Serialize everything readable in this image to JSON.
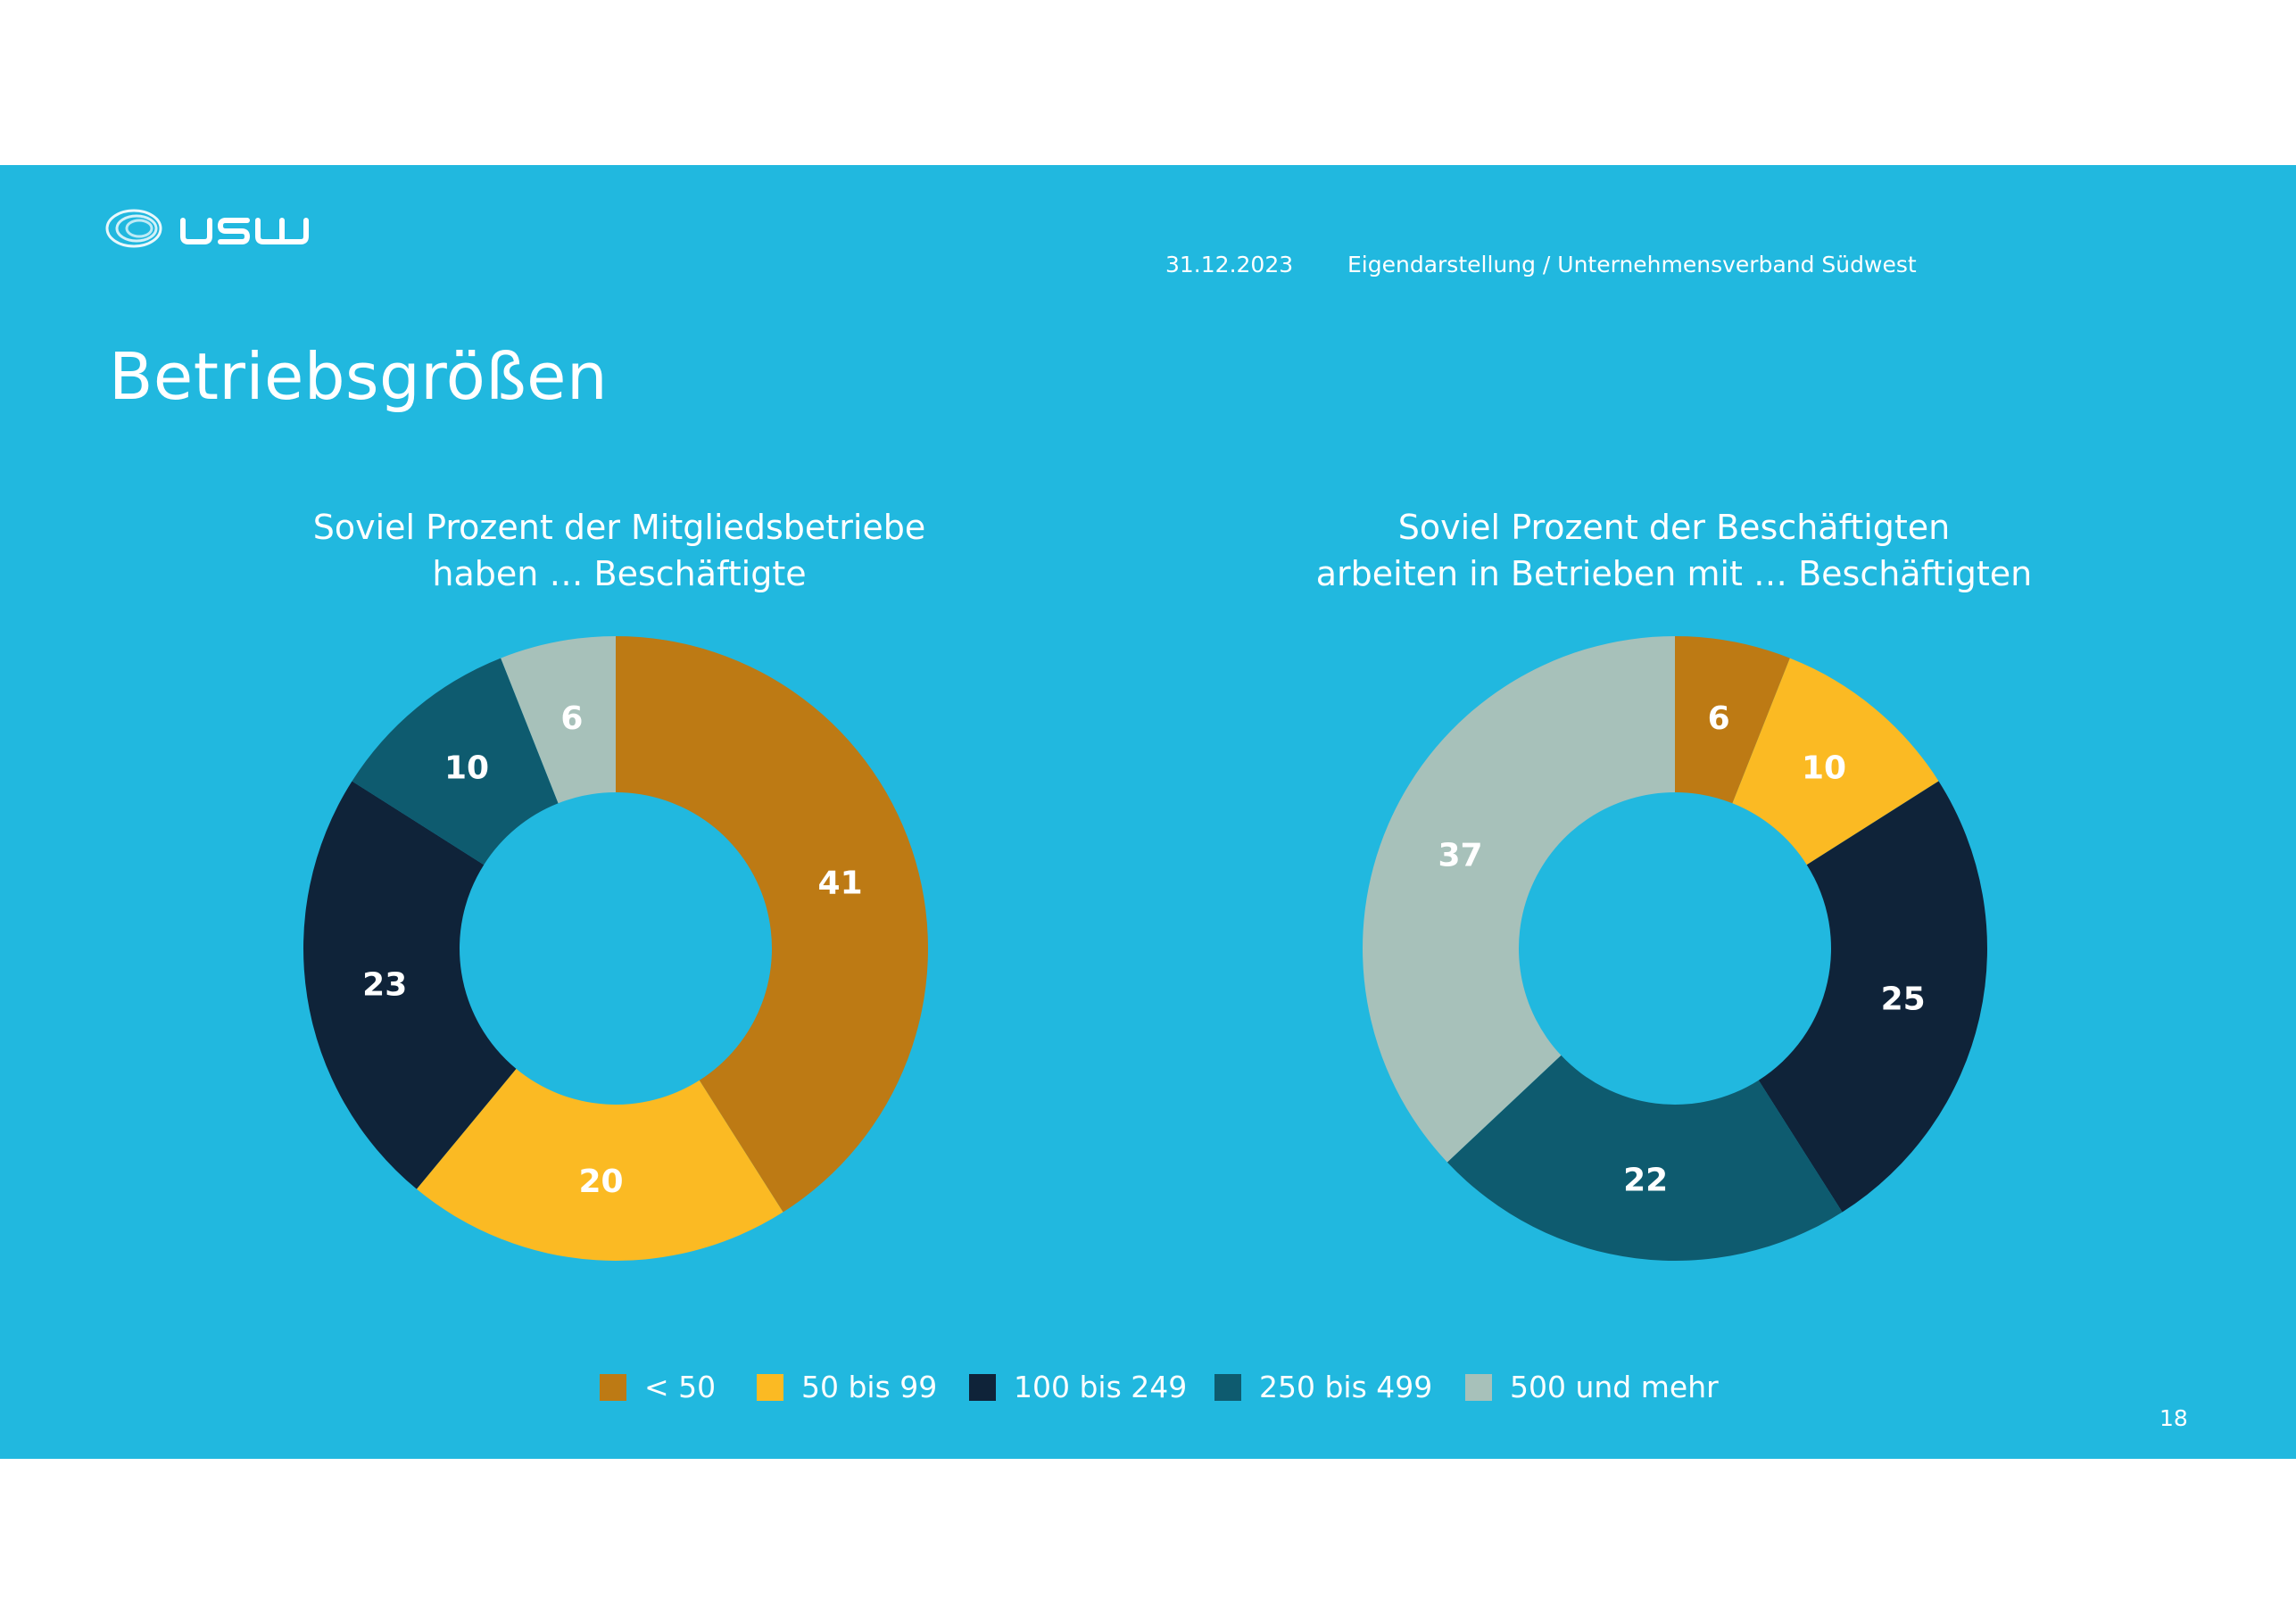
{
  "header": {
    "date": "31.12.2023",
    "source": "Eigendarstellung / Unternehmensverband Südwest"
  },
  "page": {
    "title": "Betriebsgrößen",
    "page_number": "18"
  },
  "colors": {
    "background": "#21B8DF",
    "categories": [
      "#BD7A14",
      "#FBBA23",
      "#0F2339",
      "#0E5B6F",
      "#A7C1BA"
    ]
  },
  "chart_data": [
    {
      "type": "donut",
      "title_lines": [
        "Soviel Prozent der Mitgliedsbetriebe",
        "haben … Beschäftigte"
      ],
      "categories": [
        "< 50",
        "50 bis 99",
        "100 bis 249",
        "250 bis 499",
        "500 und mehr"
      ],
      "values": [
        41,
        20,
        23,
        10,
        6
      ],
      "unit": "%",
      "legend": "bottom"
    },
    {
      "type": "donut",
      "title_lines": [
        "Soviel Prozent der Beschäftigten",
        "arbeiten in Betrieben mit … Beschäftigten"
      ],
      "categories": [
        "< 50",
        "50 bis 99",
        "100 bis 249",
        "250 bis 499",
        "500 und mehr"
      ],
      "values": [
        6,
        10,
        25,
        22,
        37
      ],
      "unit": "%",
      "legend": "bottom"
    }
  ],
  "legend": {
    "items": [
      "< 50",
      "50 bis 99",
      "100 bis 249",
      "250 bis 499",
      "500 und mehr"
    ]
  }
}
